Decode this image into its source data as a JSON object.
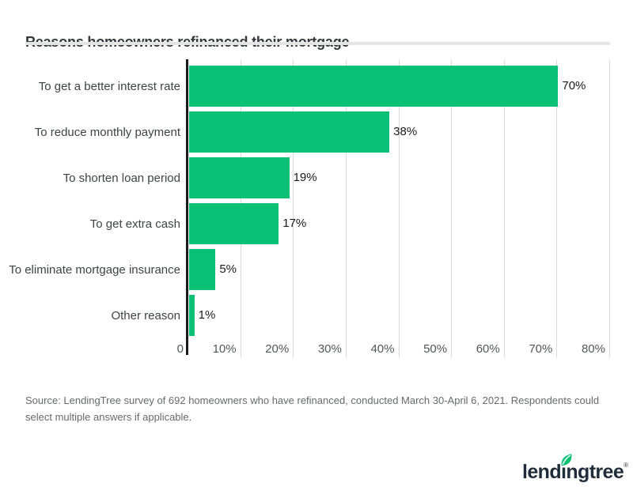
{
  "header": {
    "title": "Reasons homeowners refinanced their mortgage"
  },
  "chart_data": {
    "type": "bar",
    "orientation": "horizontal",
    "title": "Reasons homeowners refinanced their mortgage",
    "categories": [
      "To get a better interest rate",
      "To reduce monthly payment",
      "To shorten loan period",
      "To get extra cash",
      "To eliminate mortgage insurance",
      "Other reason"
    ],
    "values": [
      70,
      38,
      19,
      17,
      5,
      1
    ],
    "value_labels": [
      "70%",
      "38%",
      "19%",
      "17%",
      "5%",
      "1%"
    ],
    "xlabel": "",
    "ylabel": "",
    "xlim": [
      0,
      80
    ],
    "x_ticks": [
      {
        "value": 0,
        "label": "0"
      },
      {
        "value": 10,
        "label": "10%"
      },
      {
        "value": 20,
        "label": "20%"
      },
      {
        "value": 30,
        "label": "30%"
      },
      {
        "value": 40,
        "label": "40%"
      },
      {
        "value": 50,
        "label": "50%"
      },
      {
        "value": 60,
        "label": "60%"
      },
      {
        "value": 70,
        "label": "70%"
      },
      {
        "value": 80,
        "label": "80%"
      }
    ],
    "grid": true,
    "legend": false,
    "bar_color": "#0abf76",
    "gridline_color": "#dcdcdc",
    "axis_color": "#1a1a1a"
  },
  "footer": {
    "source_text": "Source: LendingTree survey of 692 homeowners who have refinanced, conducted March 30-April 6, 2021. Respondents could select multiple answers if applicable."
  },
  "logo": {
    "text_before_leaf": "lend",
    "leaf_letter": "ı",
    "text_after_leaf": "ngtree",
    "registered_mark": "®",
    "text_color": "#1f2d3a",
    "leaf_color": "#00c173"
  }
}
